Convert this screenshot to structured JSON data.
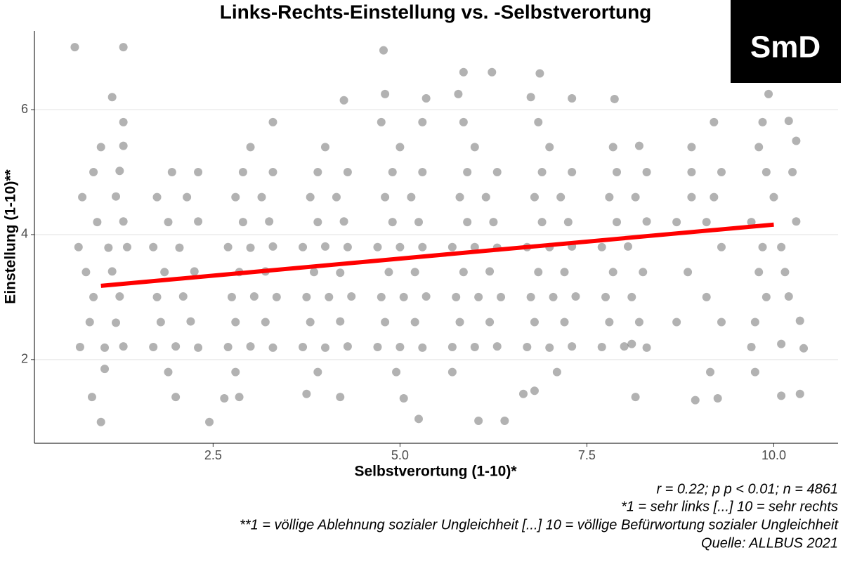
{
  "chart_data": {
    "type": "scatter",
    "title": "Links-Rechts-Einstellung vs. -Selbstverortung",
    "x_label": "Selbstverortung (1-10)*",
    "y_label": "Einstellung (1-10)**",
    "notes": [
      "r = 0.22; p p < 0.01; n = 4861",
      "*1 = sehr links [...] 10 = sehr rechts",
      "**1 = völlige Ablehnung sozialer Ungleichheit [...] 10 = völlige Befürwortung sozialer Ungleichheit",
      "Quelle: ALLBUS 2021"
    ],
    "color": "#000000",
    "xlim": [
      0.11,
      10.86
    ],
    "ylim": [
      0.66,
      7.26
    ],
    "xticks": [
      2.5,
      {
        "value": 5,
        "label": "5.0"
      },
      7.5,
      {
        "value": 10,
        "label": "10.0"
      }
    ],
    "yticks": [
      2,
      4,
      6
    ],
    "grid": true,
    "x": [
      0.72,
      1.05,
      1.3,
      0.85,
      1.2,
      0.9,
      1.25,
      0.8,
      1.15,
      0.7,
      1.1,
      1.35,
      0.95,
      1.3,
      0.75,
      1.2,
      0.9,
      1.25,
      1.0,
      1.3,
      0.65,
      1.3,
      1.15,
      1.3,
      0.88,
      1.0,
      1.05,
      1.7,
      2.0,
      2.3,
      1.8,
      2.2,
      1.75,
      2.1,
      1.85,
      2.25,
      1.7,
      2.05,
      1.9,
      2.3,
      1.75,
      2.15,
      1.95,
      2.3,
      2.0,
      2.45,
      1.9,
      2.7,
      3.0,
      3.3,
      2.8,
      3.2,
      2.75,
      3.05,
      3.35,
      2.85,
      3.2,
      2.7,
      3.0,
      3.3,
      2.9,
      3.25,
      2.8,
      3.15,
      2.9,
      3.3,
      3.0,
      3.3,
      2.8,
      2.65,
      2.85,
      3.7,
      4.0,
      4.3,
      3.8,
      4.2,
      3.75,
      4.05,
      4.35,
      3.85,
      4.2,
      3.7,
      4.0,
      4.3,
      3.9,
      4.25,
      3.8,
      4.15,
      3.9,
      4.3,
      4.0,
      4.25,
      3.9,
      4.2,
      3.75,
      4.7,
      5.0,
      5.3,
      4.8,
      5.2,
      4.75,
      5.05,
      5.35,
      4.85,
      5.2,
      4.7,
      5.0,
      5.3,
      4.9,
      5.25,
      4.8,
      5.15,
      4.9,
      5.3,
      5.0,
      4.75,
      5.3,
      4.78,
      4.8,
      5.35,
      4.95,
      5.05,
      5.25,
      5.7,
      6.0,
      6.3,
      5.8,
      6.2,
      5.75,
      6.05,
      6.35,
      5.85,
      6.2,
      5.7,
      6.0,
      6.3,
      5.9,
      6.25,
      5.8,
      6.15,
      5.9,
      6.3,
      6.0,
      5.85,
      5.85,
      6.23,
      5.78,
      6.05,
      6.4,
      5.7,
      6.7,
      7.0,
      7.3,
      6.8,
      7.2,
      6.75,
      7.05,
      7.35,
      6.85,
      7.2,
      6.7,
      7.0,
      7.3,
      6.9,
      7.25,
      6.8,
      7.15,
      6.9,
      7.3,
      7.0,
      6.85,
      6.87,
      6.75,
      7.3,
      6.8,
      6.65,
      7.1,
      7.7,
      8.0,
      8.3,
      7.8,
      8.2,
      7.75,
      8.1,
      7.85,
      8.25,
      7.7,
      8.05,
      7.9,
      8.3,
      7.8,
      8.15,
      7.9,
      8.3,
      7.85,
      8.2,
      7.87,
      8.15,
      8.1,
      8.7,
      9.1,
      8.85,
      9.3,
      8.7,
      9.1,
      8.9,
      9.2,
      8.9,
      9.3,
      8.9,
      9.2,
      9.3,
      8.95,
      9.25,
      9.15,
      9.7,
      10.1,
      10.4,
      9.75,
      10.35,
      9.9,
      10.2,
      9.8,
      10.15,
      9.85,
      10.1,
      9.7,
      10.0,
      10.3,
      9.9,
      10.25,
      9.8,
      10.3,
      9.85,
      10.2,
      9.93,
      9.75,
      10.35,
      10.1
    ],
    "values": [
      2.2,
      2.19,
      2.21,
      2.6,
      2.59,
      3.0,
      3.01,
      3.4,
      3.41,
      3.8,
      3.79,
      3.8,
      4.2,
      4.21,
      4.6,
      4.61,
      5.0,
      5.02,
      5.4,
      5.42,
      7.0,
      7.0,
      6.2,
      5.8,
      1.4,
      1.0,
      1.85,
      2.2,
      2.21,
      2.19,
      2.6,
      2.61,
      3.0,
      3.01,
      3.4,
      3.41,
      3.8,
      3.79,
      4.2,
      4.21,
      4.6,
      4.6,
      5.0,
      5.0,
      1.4,
      1.0,
      1.8,
      2.2,
      2.21,
      2.19,
      2.6,
      2.6,
      3.0,
      3.01,
      3.0,
      3.4,
      3.41,
      3.8,
      3.79,
      3.81,
      4.2,
      4.21,
      4.6,
      4.6,
      5.0,
      5.0,
      5.4,
      5.8,
      1.8,
      1.38,
      1.4,
      2.2,
      2.19,
      2.21,
      2.6,
      2.61,
      3.0,
      3.0,
      3.01,
      3.4,
      3.39,
      3.8,
      3.81,
      3.8,
      4.2,
      4.21,
      4.6,
      4.6,
      5.0,
      5.0,
      5.4,
      6.15,
      1.8,
      1.4,
      1.45,
      2.2,
      2.2,
      2.19,
      2.6,
      2.6,
      3.0,
      3.0,
      3.01,
      3.4,
      3.4,
      3.8,
      3.8,
      3.8,
      4.2,
      4.2,
      4.6,
      4.6,
      5.0,
      5.0,
      5.4,
      5.8,
      5.8,
      6.95,
      6.25,
      6.18,
      1.8,
      1.38,
      1.05,
      2.2,
      2.2,
      2.21,
      2.6,
      2.6,
      3.0,
      3.0,
      3.0,
      3.4,
      3.41,
      3.8,
      3.8,
      3.79,
      4.2,
      4.2,
      4.6,
      4.6,
      5.0,
      5.0,
      5.4,
      5.8,
      6.6,
      6.6,
      6.25,
      1.02,
      1.02,
      1.8,
      2.2,
      2.19,
      2.21,
      2.6,
      2.6,
      3.0,
      3.0,
      3.01,
      3.4,
      3.4,
      3.8,
      3.8,
      3.81,
      4.2,
      4.2,
      4.6,
      4.6,
      5.0,
      5.0,
      5.4,
      5.8,
      6.58,
      6.2,
      6.18,
      1.5,
      1.45,
      1.8,
      2.2,
      2.21,
      2.19,
      2.6,
      2.6,
      3.0,
      3.0,
      3.4,
      3.4,
      3.8,
      3.81,
      4.2,
      4.21,
      4.6,
      4.6,
      5.0,
      5.0,
      5.4,
      5.42,
      6.17,
      1.4,
      2.25,
      2.6,
      3.0,
      3.4,
      3.8,
      4.2,
      4.2,
      4.6,
      4.6,
      5.0,
      5.0,
      5.4,
      5.8,
      2.6,
      1.35,
      1.38,
      1.8,
      2.2,
      2.25,
      2.18,
      2.6,
      2.62,
      3.0,
      3.01,
      3.4,
      3.4,
      3.8,
      3.8,
      4.2,
      4.6,
      4.21,
      5.0,
      5.0,
      5.4,
      5.5,
      5.8,
      5.82,
      6.25,
      1.8,
      1.45,
      1.42
    ],
    "trend": {
      "color": "#ff0000",
      "x": [
        1,
        10
      ],
      "values": [
        3.18,
        4.16
      ]
    }
  },
  "logo": "SmD"
}
